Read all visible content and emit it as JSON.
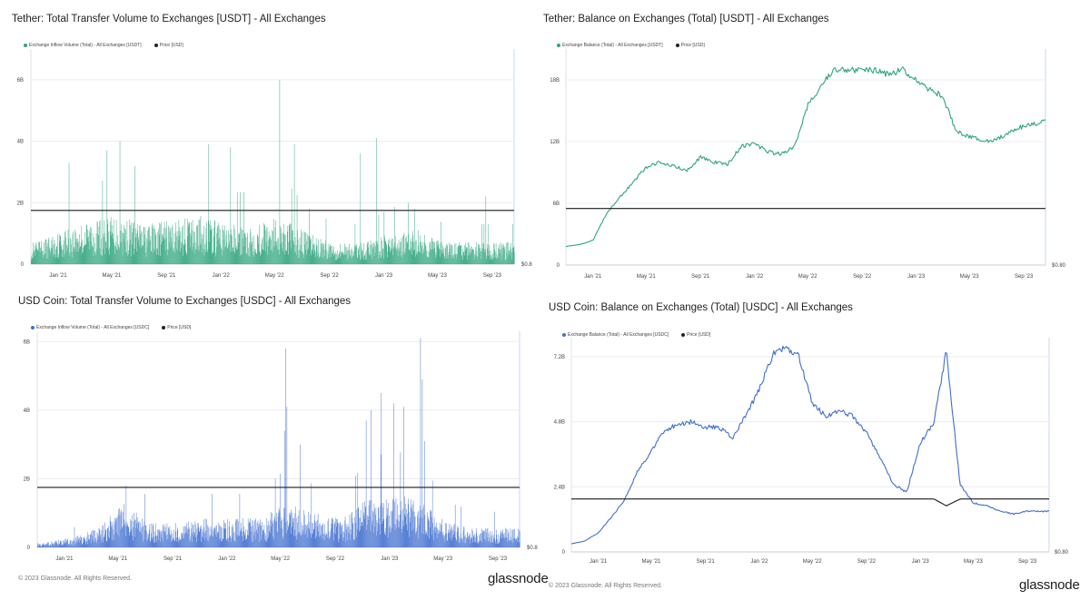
{
  "footer": {
    "copyright_left": "© 2023 Glassnode. All Rights Reserved.",
    "brand_left": "glassnode",
    "copyright_right": "© 2023 Glassnode. All Rights Reserved.",
    "brand_right": "glassnode"
  },
  "panels": [
    {
      "title": "Tether: Total Transfer Volume to Exchanges [USDT] - All Exchanges",
      "legend": [
        {
          "label": "Exchange Inflow Volume (Total) - All Exchanges [USDT]",
          "color": "#2ea57d"
        },
        {
          "label": "Price [USD]",
          "color": "#222222"
        }
      ],
      "price_label": "$0.8"
    },
    {
      "title": "Tether: Balance on Exchanges (Total) [USDT] - All Exchanges",
      "legend": [
        {
          "label": "Exchange Balance (Total) - All Exchanges [USDT]",
          "color": "#2ea57d"
        },
        {
          "label": "Price [USD]",
          "color": "#222222"
        }
      ],
      "price_label": "$0.80"
    },
    {
      "title": "USD Coin: Total Transfer Volume to Exchanges [USDC] - All Exchanges",
      "legend": [
        {
          "label": "Exchange Inflow Volume (Total) - All Exchanges [USDC]",
          "color": "#3f6fcf"
        },
        {
          "label": "Price [USD]",
          "color": "#222222"
        }
      ],
      "price_label": "$0.8"
    },
    {
      "title": "USD Coin: Balance on Exchanges (Total) [USDC] - All Exchanges",
      "legend": [
        {
          "label": "Exchange Balance (Total) - All Exchanges [USDC]",
          "color": "#3f6fcf"
        },
        {
          "label": "Price [USD]",
          "color": "#222222"
        }
      ],
      "price_label": "$0.80"
    }
  ],
  "chart_data": [
    {
      "type": "bar",
      "title": "Tether: Total Transfer Volume to Exchanges [USDT] - All Exchanges",
      "color": "#2ea57d",
      "x_ticks": [
        "Jan '21",
        "May '21",
        "Sep '21",
        "Jan '22",
        "May '22",
        "Sep '22",
        "Jan '23",
        "May '23",
        "Sep '23"
      ],
      "y_ticks": [
        "0",
        "2B",
        "4B",
        "6B"
      ],
      "ylim": [
        0,
        7
      ],
      "unit": "B",
      "x": [
        "2020-11",
        "2021-01",
        "2021-03",
        "2021-05",
        "2021-07",
        "2021-09",
        "2021-11",
        "2022-01",
        "2022-03",
        "2022-05",
        "2022-07",
        "2022-09",
        "2022-11",
        "2023-01",
        "2023-03",
        "2023-05",
        "2023-07",
        "2023-09",
        "2023-10"
      ],
      "series": [
        {
          "values": [
            0.5,
            0.8,
            1.0,
            1.1,
            0.9,
            1.0,
            1.1,
            0.9,
            0.9,
            1.1,
            0.7,
            0.5,
            0.5,
            0.7,
            0.8,
            0.5,
            0.5,
            0.5,
            0.5
          ]
        },
        {
          "name": "Price [USD]",
          "values": [
            1.0,
            1.0,
            1.0,
            1.0,
            1.0,
            1.0,
            1.0,
            1.0,
            1.0,
            1.0,
            1.0,
            1.0,
            1.0,
            1.0,
            1.0,
            1.0,
            1.0,
            1.0,
            1.0
          ]
        }
      ],
      "spikes": [
        [
          "2021-01-25",
          3.3
        ],
        [
          "2021-04-20",
          3.7
        ],
        [
          "2021-05-19",
          4.0
        ],
        [
          "2021-06-22",
          3.2
        ],
        [
          "2021-12-04",
          3.9
        ],
        [
          "2022-01-22",
          3.8
        ],
        [
          "2022-05-12",
          6.0
        ],
        [
          "2022-06-14",
          3.9
        ],
        [
          "2022-11-09",
          3.6
        ],
        [
          "2022-12-15",
          4.1
        ],
        [
          "2023-03-11",
          1.8
        ],
        [
          "2023-08-17",
          2.2
        ]
      ]
    },
    {
      "type": "line",
      "title": "Tether: Balance on Exchanges (Total) [USDT] - All Exchanges",
      "color": "#2ea57d",
      "x_ticks": [
        "Jan '21",
        "May '21",
        "Sep '21",
        "Jan '22",
        "May '22",
        "Sep '22",
        "Jan '23",
        "May '23",
        "Sep '23"
      ],
      "y_ticks": [
        "0",
        "6B",
        "12B",
        "18B"
      ],
      "ylim": [
        0,
        21
      ],
      "unit": "B",
      "x": [
        "2020-11-01",
        "2020-12-01",
        "2021-01-01",
        "2021-02-01",
        "2021-03-01",
        "2021-04-01",
        "2021-05-01",
        "2021-06-01",
        "2021-07-01",
        "2021-08-01",
        "2021-09-01",
        "2021-10-01",
        "2021-11-01",
        "2021-12-01",
        "2022-01-01",
        "2022-02-01",
        "2022-03-01",
        "2022-04-01",
        "2022-05-01",
        "2022-06-01",
        "2022-07-01",
        "2022-08-01",
        "2022-09-01",
        "2022-10-01",
        "2022-11-01",
        "2022-12-01",
        "2023-01-01",
        "2023-02-01",
        "2023-03-01",
        "2023-04-01",
        "2023-05-01",
        "2023-06-01",
        "2023-07-01",
        "2023-08-01",
        "2023-09-01",
        "2023-10-01",
        "2023-10-20"
      ],
      "series": [
        {
          "values": [
            1.8,
            2.0,
            2.4,
            5.0,
            6.5,
            8.0,
            9.5,
            10.0,
            9.6,
            9.2,
            10.5,
            10.0,
            9.8,
            11.5,
            11.8,
            11.0,
            10.8,
            11.5,
            15.5,
            17.5,
            19.0,
            19.0,
            18.8,
            19.0,
            18.5,
            19.0,
            18.0,
            17.0,
            16.5,
            13.0,
            12.5,
            12.0,
            12.2,
            13.0,
            13.5,
            13.8,
            14.2
          ]
        },
        {
          "name": "Price [USD]",
          "values": [
            1.0,
            1.0,
            1.0,
            1.0,
            1.0,
            1.0,
            1.0,
            1.0,
            1.0,
            1.0,
            1.0,
            1.0,
            1.0,
            1.0,
            1.0,
            1.0,
            1.0,
            1.0,
            1.0,
            1.0,
            1.0,
            1.0,
            1.0,
            1.0,
            1.0,
            1.0,
            1.0,
            1.0,
            1.0,
            1.0,
            1.0,
            1.0,
            1.0,
            1.0,
            1.0,
            1.0,
            1.0
          ]
        }
      ]
    },
    {
      "type": "bar",
      "title": "USD Coin: Total Transfer Volume to Exchanges [USDC] - All Exchanges",
      "color": "#3f6fcf",
      "x_ticks": [
        "Jan '21",
        "May '21",
        "Sep '21",
        "Jan '22",
        "May '22",
        "Sep '22",
        "Jan '23",
        "May '23",
        "Sep '23"
      ],
      "y_ticks": [
        "0",
        "2B",
        "4B",
        "6B"
      ],
      "ylim": [
        0,
        6.3
      ],
      "unit": "B",
      "x": [
        "2020-11",
        "2021-01",
        "2021-03",
        "2021-05",
        "2021-07",
        "2021-09",
        "2021-11",
        "2022-01",
        "2022-03",
        "2022-05",
        "2022-07",
        "2022-09",
        "2022-11",
        "2023-01",
        "2023-03",
        "2023-05",
        "2023-07",
        "2023-09",
        "2023-10"
      ],
      "series": [
        {
          "values": [
            0.1,
            0.2,
            0.4,
            0.9,
            0.5,
            0.5,
            0.6,
            0.6,
            0.6,
            0.9,
            0.7,
            0.6,
            1.0,
            1.1,
            0.9,
            0.5,
            0.4,
            0.4,
            0.4
          ]
        },
        {
          "name": "Price [USD]",
          "values": [
            1.0,
            1.0,
            1.0,
            1.0,
            1.0,
            1.0,
            1.0,
            1.0,
            1.0,
            1.0,
            1.0,
            1.0,
            1.0,
            1.0,
            1.0,
            1.0,
            1.0,
            1.0,
            1.0
          ]
        }
      ],
      "spikes": [
        [
          "2021-05-19",
          1.8
        ],
        [
          "2022-05-10",
          3.4
        ],
        [
          "2022-05-12",
          5.8
        ],
        [
          "2022-05-15",
          4.1
        ],
        [
          "2022-06-14",
          3.0
        ],
        [
          "2022-11-09",
          3.7
        ],
        [
          "2022-11-20",
          4.0
        ],
        [
          "2022-12-13",
          4.5
        ],
        [
          "2023-01-10",
          4.2
        ],
        [
          "2023-02-01",
          4.1
        ],
        [
          "2023-03-11",
          6.1
        ],
        [
          "2023-03-15",
          4.9
        ],
        [
          "2023-03-20",
          3.1
        ]
      ]
    },
    {
      "type": "line",
      "title": "USD Coin: Balance on Exchanges (Total) [USDC] - All Exchanges",
      "color": "#3f6fcf",
      "x_ticks": [
        "Jan '21",
        "May '21",
        "Sep '21",
        "Jan '22",
        "May '22",
        "Sep '22",
        "Jan '23",
        "May '23",
        "Sep '23"
      ],
      "y_ticks": [
        "0",
        "2.4B",
        "4.8B",
        "7.2B"
      ],
      "ylim": [
        0,
        7.9
      ],
      "unit": "B",
      "x": [
        "2020-11-01",
        "2020-12-01",
        "2021-01-01",
        "2021-02-01",
        "2021-03-01",
        "2021-04-01",
        "2021-05-01",
        "2021-06-01",
        "2021-07-01",
        "2021-08-01",
        "2021-09-01",
        "2021-10-01",
        "2021-11-01",
        "2021-12-01",
        "2022-01-01",
        "2022-02-01",
        "2022-03-01",
        "2022-04-01",
        "2022-05-01",
        "2022-06-01",
        "2022-07-01",
        "2022-08-01",
        "2022-09-01",
        "2022-10-01",
        "2022-11-01",
        "2022-12-01",
        "2023-01-01",
        "2023-02-01",
        "2023-03-01",
        "2023-04-01",
        "2023-05-01",
        "2023-06-01",
        "2023-07-01",
        "2023-08-01",
        "2023-09-01",
        "2023-10-01",
        "2023-10-20"
      ],
      "series": [
        {
          "values": [
            0.3,
            0.4,
            0.7,
            1.3,
            1.9,
            3.0,
            3.7,
            4.5,
            4.7,
            4.8,
            4.6,
            4.6,
            4.2,
            5.0,
            6.0,
            7.3,
            7.5,
            7.2,
            5.5,
            5.0,
            5.2,
            5.0,
            4.4,
            3.5,
            2.5,
            2.2,
            4.0,
            4.8,
            7.4,
            2.5,
            1.8,
            1.7,
            1.5,
            1.4,
            1.5,
            1.5,
            1.5
          ]
        },
        {
          "name": "Price [USD]",
          "values": [
            1.95,
            1.95,
            1.95,
            1.95,
            1.95,
            1.95,
            1.95,
            1.95,
            1.95,
            1.95,
            1.95,
            1.95,
            1.95,
            1.95,
            1.95,
            1.95,
            1.95,
            1.95,
            1.95,
            1.95,
            1.95,
            1.95,
            1.95,
            1.95,
            1.95,
            1.95,
            1.95,
            1.95,
            1.7,
            1.95,
            1.95,
            1.95,
            1.95,
            1.95,
            1.95,
            1.95,
            1.95
          ]
        }
      ]
    }
  ]
}
